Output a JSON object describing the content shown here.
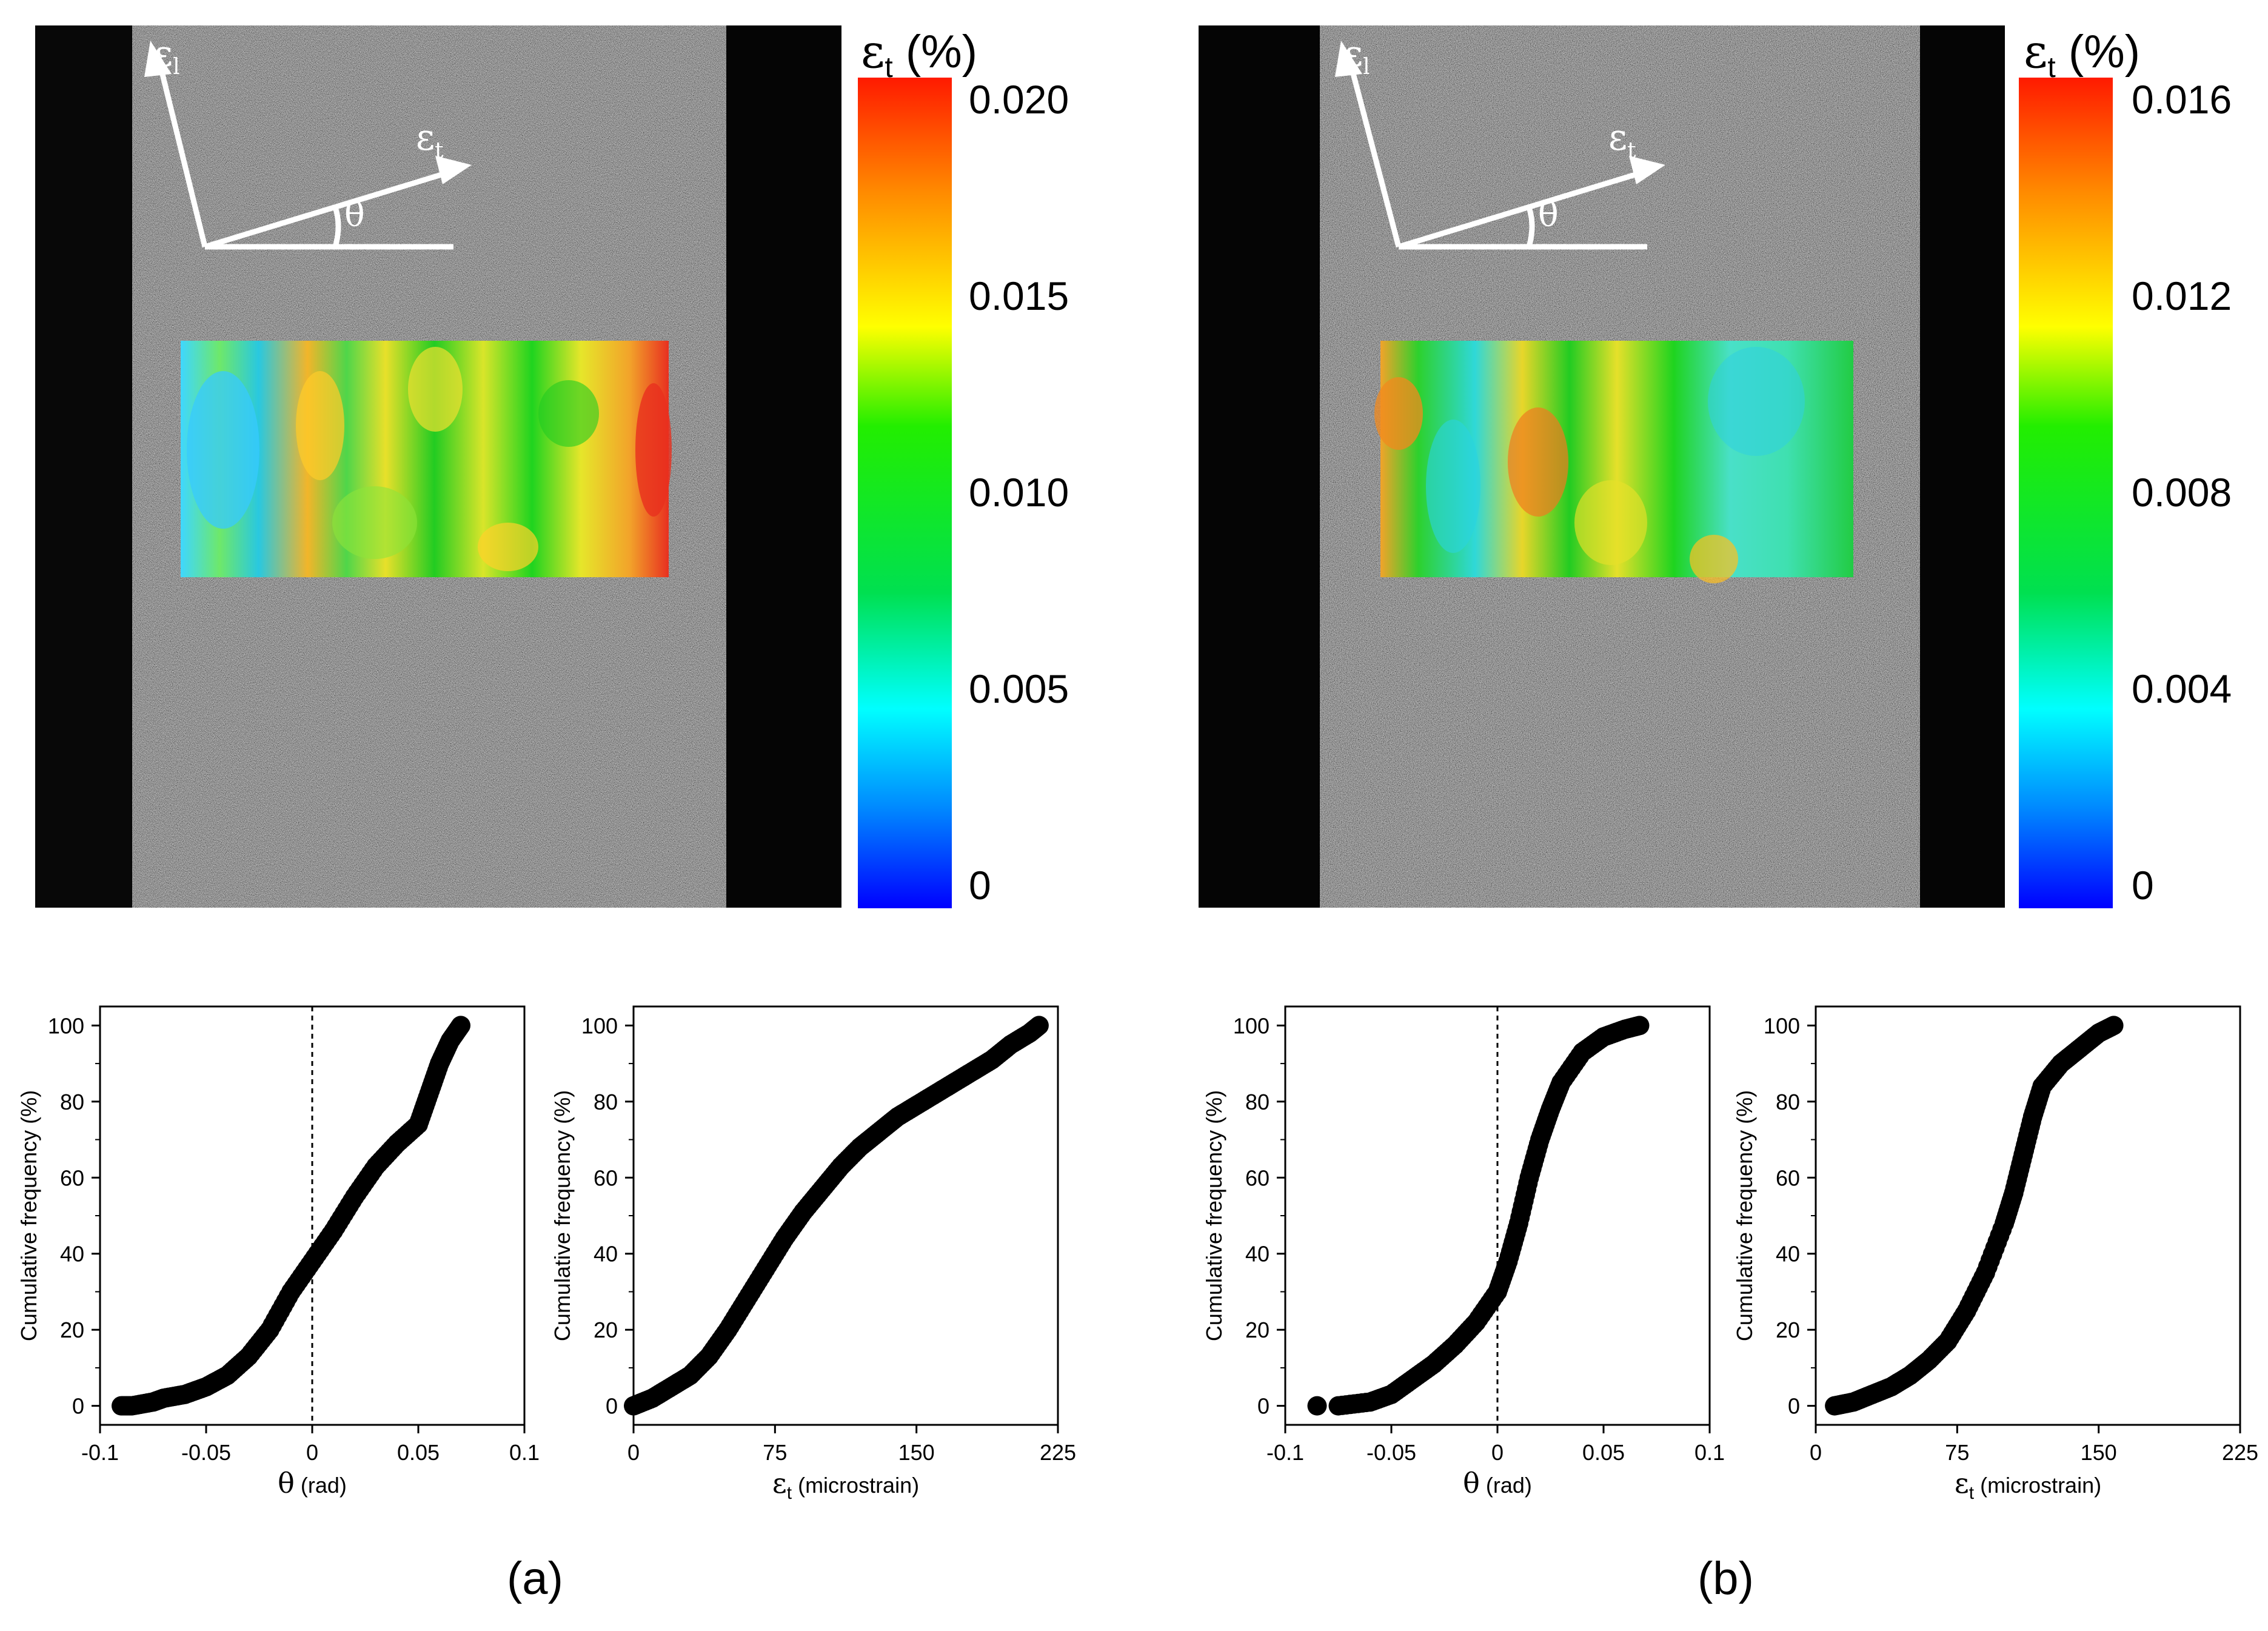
{
  "panels": [
    {
      "caption": "(a)",
      "colorbar": {
        "title_main": "ε",
        "title_sub": "t",
        "title_unit": " (%)",
        "ticks": [
          "0.020",
          "0.015",
          "0.010",
          "0.005",
          "0"
        ]
      },
      "image": {
        "symbol_long": "ε",
        "symbol_long_sub": "l",
        "symbol_trans": "ε",
        "symbol_trans_sub": "t",
        "angle": "θ"
      }
    },
    {
      "caption": "(b)",
      "colorbar": {
        "title_main": "ε",
        "title_sub": "t",
        "title_unit": " (%)",
        "ticks": [
          "0.016",
          "0.012",
          "0.008",
          "0.004",
          "0"
        ]
      },
      "image": {
        "symbol_long": "ε",
        "symbol_long_sub": "l",
        "symbol_trans": "ε",
        "symbol_trans_sub": "t",
        "angle": "θ"
      }
    }
  ],
  "chart_data": [
    {
      "type": "scatter",
      "panel": "a",
      "title": "",
      "ylabel": "Cumulative frequency (%)",
      "xlabel_symbol": "θ",
      "xlabel_unit": " (rad)",
      "xlim": [
        -0.1,
        0.1
      ],
      "ylim": [
        -5,
        105
      ],
      "xticks": [
        "-0.1",
        "-0.05",
        "0",
        "0.05",
        "0.1"
      ],
      "xtick_values": [
        -0.1,
        -0.05,
        0,
        0.05,
        0.1
      ],
      "yticks": [
        "0",
        "20",
        "40",
        "60",
        "80",
        "100"
      ],
      "ytick_values": [
        0,
        20,
        40,
        60,
        80,
        100
      ],
      "reference_line_x": 0,
      "x": [
        -0.09,
        -0.085,
        -0.075,
        -0.07,
        -0.06,
        -0.05,
        -0.04,
        -0.03,
        -0.02,
        -0.01,
        0,
        0.01,
        0.02,
        0.03,
        0.04,
        0.05,
        0.055,
        0.06,
        0.065,
        0.07
      ],
      "y": [
        0,
        0,
        1,
        2,
        3,
        5,
        8,
        13,
        20,
        30,
        38,
        46,
        55,
        63,
        69,
        74,
        82,
        90,
        96,
        100
      ]
    },
    {
      "type": "scatter",
      "panel": "a",
      "title": "",
      "ylabel": "Cumulative frequency (%)",
      "xlabel_symbol": "ε",
      "xlabel_sub": "t",
      "xlabel_unit": " (microstrain)",
      "xlim": [
        0,
        225
      ],
      "ylim": [
        -5,
        105
      ],
      "xticks": [
        "0",
        "75",
        "150",
        "225"
      ],
      "xtick_values": [
        0,
        75,
        150,
        225
      ],
      "yticks": [
        "0",
        "20",
        "40",
        "60",
        "80",
        "100"
      ],
      "ytick_values": [
        0,
        20,
        40,
        60,
        80,
        100
      ],
      "x": [
        0,
        10,
        20,
        30,
        40,
        50,
        60,
        70,
        80,
        90,
        100,
        110,
        120,
        130,
        140,
        150,
        160,
        170,
        180,
        190,
        200,
        210,
        215
      ],
      "y": [
        0,
        2,
        5,
        8,
        13,
        20,
        28,
        36,
        44,
        51,
        57,
        63,
        68,
        72,
        76,
        79,
        82,
        85,
        88,
        91,
        95,
        98,
        100
      ]
    },
    {
      "type": "scatter",
      "panel": "b",
      "title": "",
      "ylabel": "Cumulative frequency (%)",
      "xlabel_symbol": "θ",
      "xlabel_unit": " (rad)",
      "xlim": [
        -0.1,
        0.1
      ],
      "ylim": [
        -5,
        105
      ],
      "xticks": [
        "-0.1",
        "-0.05",
        "0",
        "0.05",
        "0.1"
      ],
      "xtick_values": [
        -0.1,
        -0.05,
        0,
        0.05,
        0.1
      ],
      "yticks": [
        "0",
        "20",
        "40",
        "60",
        "80",
        "100"
      ],
      "ytick_values": [
        0,
        20,
        40,
        60,
        80,
        100
      ],
      "reference_line_x": 0,
      "x": [
        -0.085,
        -0.075,
        -0.06,
        -0.05,
        -0.04,
        -0.03,
        -0.02,
        -0.01,
        0,
        0.005,
        0.01,
        0.015,
        0.02,
        0.025,
        0.03,
        0.04,
        0.05,
        0.06,
        0.067
      ],
      "y": [
        0,
        0,
        1,
        3,
        7,
        11,
        16,
        22,
        30,
        38,
        48,
        60,
        70,
        78,
        85,
        93,
        97,
        99,
        100
      ]
    },
    {
      "type": "scatter",
      "panel": "b",
      "title": "",
      "ylabel": "Cumulative frequency (%)",
      "xlabel_symbol": "ε",
      "xlabel_sub": "t",
      "xlabel_unit": " (microstrain)",
      "xlim": [
        0,
        225
      ],
      "ylim": [
        -5,
        105
      ],
      "xticks": [
        "0",
        "75",
        "150",
        "225"
      ],
      "xtick_values": [
        0,
        75,
        150,
        225
      ],
      "yticks": [
        "0",
        "20",
        "40",
        "60",
        "80",
        "100"
      ],
      "ytick_values": [
        0,
        20,
        40,
        60,
        80,
        100
      ],
      "x": [
        10,
        20,
        30,
        40,
        50,
        60,
        70,
        80,
        90,
        100,
        105,
        110,
        115,
        120,
        130,
        140,
        150,
        158
      ],
      "y": [
        0,
        1,
        3,
        5,
        8,
        12,
        17,
        25,
        35,
        48,
        56,
        66,
        76,
        84,
        90,
        94,
        98,
        100
      ]
    }
  ]
}
